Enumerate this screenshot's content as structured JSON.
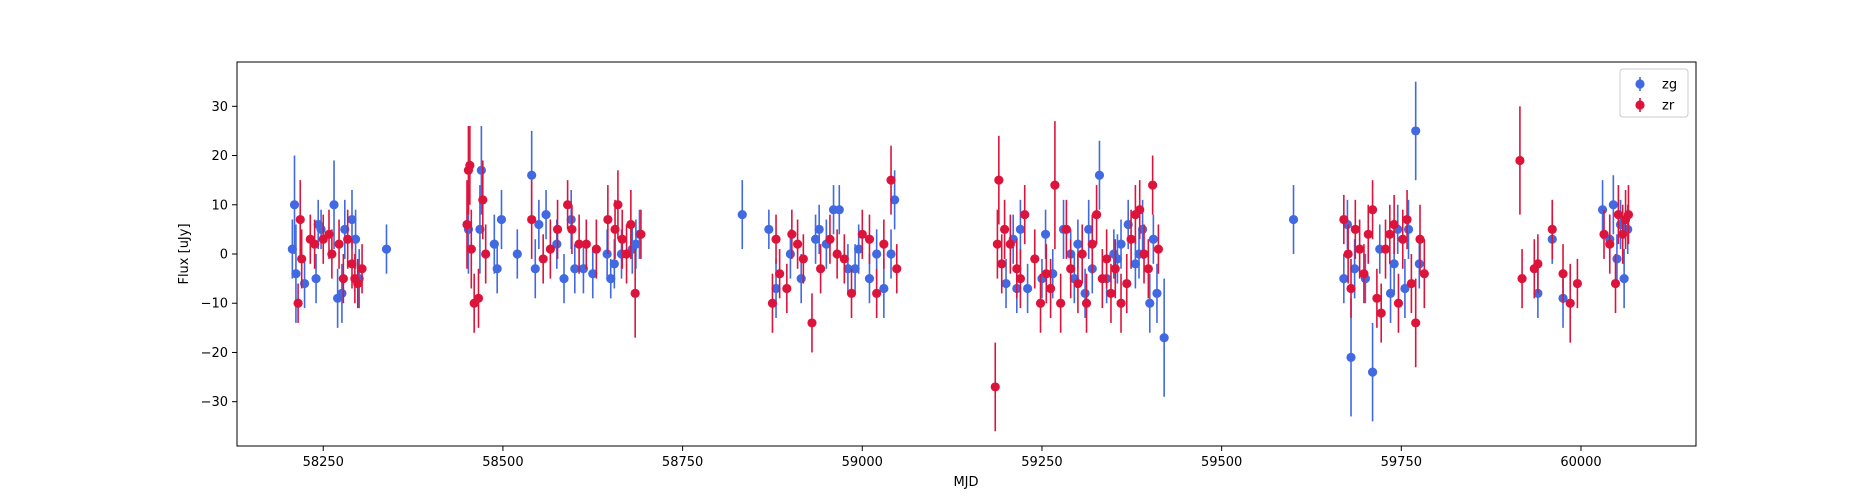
{
  "chart_data": {
    "type": "scatter",
    "title": "",
    "xlabel": "MJD",
    "ylabel": "Flux [uJy]",
    "xlim": [
      58130,
      60160
    ],
    "ylim": [
      -39,
      39
    ],
    "x_ticks": [
      58250,
      58500,
      58750,
      59000,
      59250,
      59500,
      59750,
      60000
    ],
    "y_ticks": [
      -30,
      -20,
      -10,
      0,
      10,
      20,
      30
    ],
    "grid": false,
    "legend_position": "top-right",
    "series": [
      {
        "name": "zg",
        "color": "#4169e1",
        "points": [
          [
            58207,
            1,
            6
          ],
          [
            58210,
            10,
            10
          ],
          [
            58212,
            -4,
            10
          ],
          [
            58224,
            -6,
            5
          ],
          [
            58240,
            -5,
            5
          ],
          [
            58243,
            6,
            5
          ],
          [
            58247,
            5,
            4
          ],
          [
            58265,
            10,
            9
          ],
          [
            58270,
            -9,
            6
          ],
          [
            58276,
            -8,
            6
          ],
          [
            58280,
            5,
            6
          ],
          [
            58290,
            7,
            6
          ],
          [
            58295,
            3,
            6
          ],
          [
            58300,
            -5,
            6
          ],
          [
            58338,
            1,
            5
          ],
          [
            58452,
            5,
            9
          ],
          [
            58468,
            5,
            9
          ],
          [
            58470,
            17,
            9
          ],
          [
            58488,
            2,
            6
          ],
          [
            58492,
            -3,
            5
          ],
          [
            58498,
            7,
            6
          ],
          [
            58520,
            0,
            5
          ],
          [
            58540,
            16,
            9
          ],
          [
            58545,
            -3,
            6
          ],
          [
            58550,
            6,
            5
          ],
          [
            58560,
            8,
            5
          ],
          [
            58575,
            2,
            5
          ],
          [
            58585,
            -5,
            5
          ],
          [
            58595,
            7,
            6
          ],
          [
            58600,
            -3,
            5
          ],
          [
            58612,
            -3,
            5
          ],
          [
            58625,
            -4,
            5
          ],
          [
            58645,
            0,
            5
          ],
          [
            58650,
            -5,
            4
          ],
          [
            58655,
            -2,
            5
          ],
          [
            58665,
            0,
            5
          ],
          [
            58680,
            1,
            5
          ],
          [
            58685,
            2,
            5
          ],
          [
            58690,
            4,
            5
          ],
          [
            58833,
            8,
            7
          ],
          [
            58870,
            5,
            4
          ],
          [
            58880,
            -7,
            6
          ],
          [
            58900,
            0,
            5
          ],
          [
            58915,
            -5,
            5
          ],
          [
            58935,
            3,
            5
          ],
          [
            58940,
            5,
            5
          ],
          [
            58950,
            2,
            5
          ],
          [
            58960,
            9,
            5
          ],
          [
            58968,
            9,
            5
          ],
          [
            58980,
            -3,
            5
          ],
          [
            58990,
            -3,
            5
          ],
          [
            58995,
            1,
            5
          ],
          [
            59010,
            -5,
            5
          ],
          [
            59020,
            0,
            5
          ],
          [
            59030,
            -7,
            6
          ],
          [
            59040,
            0,
            5
          ],
          [
            59045,
            11,
            6
          ],
          [
            59200,
            -6,
            5
          ],
          [
            59210,
            3,
            5
          ],
          [
            59215,
            -7,
            5
          ],
          [
            59220,
            5,
            6
          ],
          [
            59230,
            -7,
            5
          ],
          [
            59250,
            -5,
            4
          ],
          [
            59255,
            4,
            5
          ],
          [
            59265,
            -4,
            5
          ],
          [
            59280,
            5,
            6
          ],
          [
            59290,
            0,
            5
          ],
          [
            59295,
            -5,
            5
          ],
          [
            59300,
            2,
            5
          ],
          [
            59310,
            -8,
            5
          ],
          [
            59315,
            5,
            6
          ],
          [
            59320,
            -3,
            5
          ],
          [
            59330,
            16,
            7
          ],
          [
            59340,
            -5,
            5
          ],
          [
            59350,
            0,
            5
          ],
          [
            59355,
            -1,
            5
          ],
          [
            59360,
            2,
            5
          ],
          [
            59370,
            6,
            5
          ],
          [
            59380,
            -2,
            5
          ],
          [
            59385,
            0,
            5
          ],
          [
            59390,
            5,
            6
          ],
          [
            59400,
            -10,
            6
          ],
          [
            59405,
            3,
            5
          ],
          [
            59410,
            -8,
            6
          ],
          [
            59420,
            -17,
            12
          ],
          [
            59600,
            7,
            7
          ],
          [
            59670,
            -5,
            5
          ],
          [
            59675,
            6,
            5
          ],
          [
            59680,
            -21,
            12
          ],
          [
            59685,
            -3,
            6
          ],
          [
            59700,
            -5,
            5
          ],
          [
            59710,
            -24,
            10
          ],
          [
            59720,
            1,
            5
          ],
          [
            59735,
            -8,
            6
          ],
          [
            59740,
            -2,
            6
          ],
          [
            59745,
            5,
            5
          ],
          [
            59755,
            -7,
            6
          ],
          [
            59760,
            5,
            6
          ],
          [
            59770,
            25,
            10
          ],
          [
            59775,
            -2,
            5
          ],
          [
            60030,
            9,
            6
          ],
          [
            60040,
            3,
            5
          ],
          [
            60045,
            10,
            6
          ],
          [
            60050,
            -1,
            5
          ],
          [
            60055,
            6,
            5
          ],
          [
            60060,
            -5,
            6
          ],
          [
            60065,
            5,
            5
          ],
          [
            59960,
            3,
            5
          ],
          [
            59975,
            -9,
            6
          ],
          [
            59940,
            -8,
            5
          ]
        ]
      },
      {
        "name": "zr",
        "color": "#dc143c",
        "points": [
          [
            58215,
            -10,
            4
          ],
          [
            58218,
            7,
            8
          ],
          [
            58220,
            -1,
            6
          ],
          [
            58232,
            3,
            5
          ],
          [
            58238,
            2,
            5
          ],
          [
            58250,
            3,
            5
          ],
          [
            58258,
            4,
            5
          ],
          [
            58262,
            0,
            5
          ],
          [
            58272,
            2,
            5
          ],
          [
            58278,
            -5,
            5
          ],
          [
            58284,
            3,
            6
          ],
          [
            58290,
            -2,
            5
          ],
          [
            58294,
            -5,
            5
          ],
          [
            58298,
            -6,
            5
          ],
          [
            58304,
            -3,
            5
          ],
          [
            58450,
            6,
            9
          ],
          [
            58452,
            17,
            9
          ],
          [
            58454,
            18,
            8
          ],
          [
            58456,
            1,
            8
          ],
          [
            58460,
            -10,
            6
          ],
          [
            58466,
            -9,
            6
          ],
          [
            58472,
            11,
            8
          ],
          [
            58476,
            0,
            6
          ],
          [
            58540,
            7,
            8
          ],
          [
            58556,
            -1,
            5
          ],
          [
            58566,
            1,
            6
          ],
          [
            58576,
            5,
            6
          ],
          [
            58590,
            10,
            5
          ],
          [
            58596,
            5,
            5
          ],
          [
            58606,
            2,
            6
          ],
          [
            58616,
            2,
            5
          ],
          [
            58630,
            1,
            6
          ],
          [
            58646,
            7,
            7
          ],
          [
            58656,
            5,
            6
          ],
          [
            58660,
            10,
            7
          ],
          [
            58666,
            3,
            6
          ],
          [
            58672,
            0,
            6
          ],
          [
            58678,
            6,
            7
          ],
          [
            58684,
            -8,
            9
          ],
          [
            58692,
            4,
            5
          ],
          [
            58875,
            -10,
            6
          ],
          [
            58880,
            3,
            5
          ],
          [
            58885,
            -4,
            5
          ],
          [
            58895,
            -7,
            5
          ],
          [
            58902,
            4,
            5
          ],
          [
            58910,
            2,
            5
          ],
          [
            58918,
            -1,
            5
          ],
          [
            58930,
            -14,
            6
          ],
          [
            58942,
            -3,
            5
          ],
          [
            58955,
            3,
            5
          ],
          [
            58965,
            0,
            5
          ],
          [
            58975,
            -1,
            5
          ],
          [
            58985,
            -8,
            5
          ],
          [
            59000,
            4,
            5
          ],
          [
            59010,
            3,
            5
          ],
          [
            59020,
            -8,
            5
          ],
          [
            59030,
            2,
            5
          ],
          [
            59040,
            15,
            7
          ],
          [
            59048,
            -3,
            5
          ],
          [
            59185,
            -27,
            9
          ],
          [
            59188,
            2,
            7
          ],
          [
            59190,
            15,
            9
          ],
          [
            59194,
            -2,
            6
          ],
          [
            59198,
            5,
            6
          ],
          [
            59206,
            2,
            6
          ],
          [
            59215,
            -3,
            6
          ],
          [
            59220,
            -5,
            6
          ],
          [
            59226,
            8,
            6
          ],
          [
            59240,
            -1,
            6
          ],
          [
            59248,
            -10,
            6
          ],
          [
            59256,
            -4,
            6
          ],
          [
            59262,
            -7,
            6
          ],
          [
            59268,
            14,
            13
          ],
          [
            59276,
            -10,
            6
          ],
          [
            59284,
            5,
            6
          ],
          [
            59290,
            -3,
            6
          ],
          [
            59300,
            -6,
            6
          ],
          [
            59306,
            0,
            6
          ],
          [
            59312,
            -10,
            6
          ],
          [
            59320,
            2,
            6
          ],
          [
            59326,
            8,
            6
          ],
          [
            59334,
            -5,
            6
          ],
          [
            59340,
            -1,
            6
          ],
          [
            59346,
            -8,
            6
          ],
          [
            59352,
            -3,
            6
          ],
          [
            59360,
            -10,
            6
          ],
          [
            59368,
            -6,
            6
          ],
          [
            59374,
            3,
            6
          ],
          [
            59380,
            8,
            6
          ],
          [
            59386,
            9,
            6
          ],
          [
            59392,
            0,
            6
          ],
          [
            59398,
            -3,
            6
          ],
          [
            59404,
            14,
            6
          ],
          [
            59412,
            1,
            5
          ],
          [
            59670,
            7,
            5
          ],
          [
            59676,
            0,
            6
          ],
          [
            59680,
            -7,
            6
          ],
          [
            59686,
            5,
            6
          ],
          [
            59692,
            1,
            6
          ],
          [
            59698,
            -4,
            6
          ],
          [
            59704,
            4,
            6
          ],
          [
            59710,
            9,
            6
          ],
          [
            59716,
            -9,
            6
          ],
          [
            59722,
            -12,
            6
          ],
          [
            59728,
            1,
            6
          ],
          [
            59734,
            4,
            6
          ],
          [
            59740,
            6,
            6
          ],
          [
            59746,
            -10,
            6
          ],
          [
            59752,
            3,
            6
          ],
          [
            59758,
            7,
            6
          ],
          [
            59764,
            -6,
            6
          ],
          [
            59770,
            -14,
            9
          ],
          [
            59776,
            3,
            7
          ],
          [
            59782,
            -4,
            7
          ],
          [
            59915,
            19,
            11
          ],
          [
            59918,
            -5,
            6
          ],
          [
            59935,
            -3,
            6
          ],
          [
            59940,
            -2,
            6
          ],
          [
            59960,
            5,
            6
          ],
          [
            59975,
            -4,
            6
          ],
          [
            59985,
            -10,
            8
          ],
          [
            59995,
            -6,
            5
          ],
          [
            60032,
            4,
            5
          ],
          [
            60040,
            2,
            6
          ],
          [
            60048,
            -6,
            6
          ],
          [
            60052,
            8,
            6
          ],
          [
            60058,
            4,
            6
          ],
          [
            60062,
            7,
            6
          ],
          [
            60066,
            8,
            6
          ]
        ]
      }
    ]
  }
}
